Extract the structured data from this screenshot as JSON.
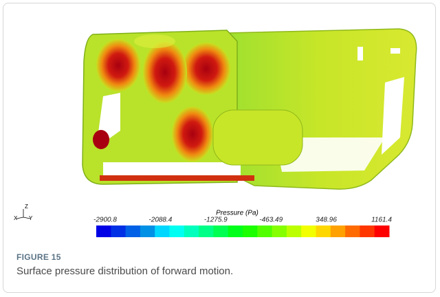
{
  "figure": {
    "colorbar": {
      "title": "Pressure (Pa)",
      "ticks": [
        -2900.8,
        -2088.4,
        -1275.9,
        -463.49,
        348.96,
        1161.4
      ]
    },
    "axes": {
      "z": "Z",
      "x": "X",
      "y": "Y"
    },
    "caption": {
      "label": "FIGURE 15",
      "text": "Surface pressure distribution of forward motion."
    }
  }
}
